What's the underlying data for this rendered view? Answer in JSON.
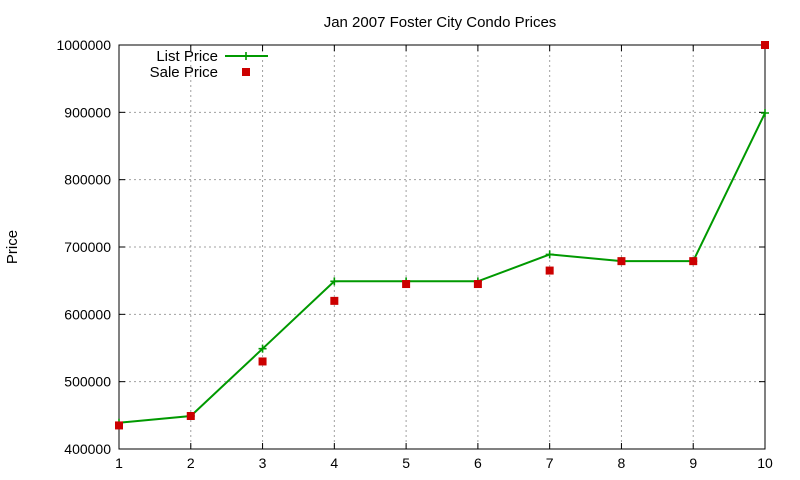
{
  "chart_data": {
    "type": "line",
    "title": "Jan 2007 Foster City Condo Prices",
    "xlabel": "",
    "ylabel": "Price",
    "x": [
      1,
      2,
      3,
      4,
      5,
      6,
      7,
      8,
      9,
      10
    ],
    "x_ticks": [
      "1",
      "2",
      "3",
      "4",
      "5",
      "6",
      "7",
      "8",
      "9",
      "10"
    ],
    "y_ticks": [
      "400000",
      "500000",
      "600000",
      "700000",
      "800000",
      "900000",
      "1000000"
    ],
    "xlim": [
      1,
      10
    ],
    "ylim": [
      400000,
      1000000
    ],
    "grid": true,
    "legend_position": "top-left",
    "series": [
      {
        "name": "List Price",
        "style": "line-with-plus-markers",
        "color": "#009900",
        "values": [
          439000,
          449000,
          549000,
          649000,
          649000,
          649000,
          689000,
          679000,
          679000,
          899000
        ]
      },
      {
        "name": "Sale Price",
        "style": "square-markers",
        "color": "#cc0000",
        "values": [
          435000,
          449000,
          530000,
          620000,
          645000,
          645000,
          665000,
          679000,
          679000,
          1000000
        ]
      }
    ]
  }
}
